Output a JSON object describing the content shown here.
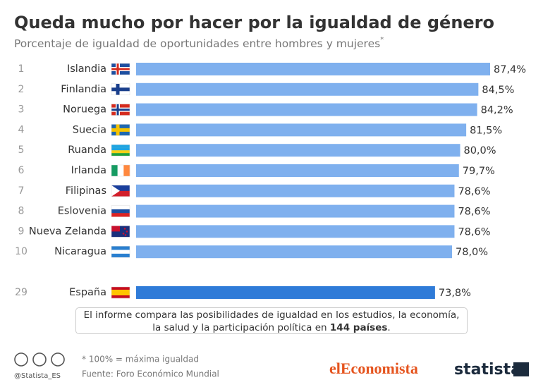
{
  "chart_data": {
    "type": "bar",
    "orientation": "horizontal",
    "title": "Queda mucho por hacer por la igualdad de género",
    "subtitle": "Porcentaje de igualdad de oportunidades entre hombres y mujeres",
    "subtitle_mark": "*",
    "ranks": [
      "1",
      "2",
      "3",
      "4",
      "5",
      "6",
      "7",
      "8",
      "9",
      "10",
      "29"
    ],
    "categories": [
      "Islandia",
      "Finlandia",
      "Noruega",
      "Suecia",
      "Ruanda",
      "Irlanda",
      "Filipinas",
      "Eslovenia",
      "Nueva Zelanda",
      "Nicaragua",
      "España"
    ],
    "values": [
      87.4,
      84.5,
      84.2,
      81.5,
      80.0,
      79.7,
      78.6,
      78.6,
      78.6,
      78.0,
      73.8
    ],
    "value_labels": [
      "87,4%",
      "84,5%",
      "84,2%",
      "81,5%",
      "80,0%",
      "79,7%",
      "78,6%",
      "78,6%",
      "78,6%",
      "78,0%",
      "73,8%"
    ],
    "colors": [
      "#7fb0ee",
      "#7fb0ee",
      "#7fb0ee",
      "#7fb0ee",
      "#7fb0ee",
      "#7fb0ee",
      "#7fb0ee",
      "#7fb0ee",
      "#7fb0ee",
      "#7fb0ee",
      "#2f7bd8"
    ],
    "note": [
      "El informe compara las posibilidades de igualdad en los estudios, la economía, la salud y la participación política en ",
      "144 países",
      "."
    ],
    "footnote": "* 100% = máxima igualdad",
    "source": "Fuente: Foro Económico Mundial",
    "handle": "@Statista_ES",
    "logo_left": "elEconomista",
    "logo_right": "statista"
  }
}
